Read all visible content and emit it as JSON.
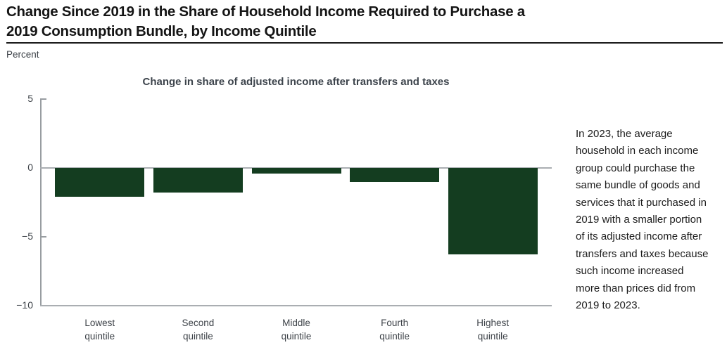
{
  "figure": {
    "title_line1": "Change Since 2019 in the Share of Household Income Required to Purchase a",
    "title_line2": "2019 Consumption Bundle, by Income Quintile",
    "unit_label": "Percent"
  },
  "chart_data": {
    "type": "bar",
    "title": "Change in share of adjusted income after transfers and taxes",
    "categories": [
      "Lowest quintile",
      "Second quintile",
      "Middle quintile",
      "Fourth quintile",
      "Highest quintile"
    ],
    "values": [
      -2.1,
      -1.8,
      -0.4,
      -1.0,
      -6.3
    ],
    "ylabel": "Percent",
    "ylim": [
      -10,
      5
    ],
    "yticks": [
      {
        "label": "5",
        "value": 5,
        "line": "tick"
      },
      {
        "label": "0",
        "value": 0,
        "line": "full"
      },
      {
        "label": "−5",
        "value": -5,
        "line": "tick"
      },
      {
        "label": "−10",
        "value": -10,
        "line": "full"
      }
    ],
    "bar_color": "#143d20",
    "legend": "none",
    "grid": false
  },
  "annotation": {
    "text": "In 2023, the average\nhousehold in each income\ngroup could purchase the\nsame bundle of goods and\nservices that it purchased in\n2019 with a smaller portion\nof its adjusted income after\ntransfers and taxes because\nsuch income increased\nmore than prices did from\n2019 to 2023."
  },
  "colors": {
    "bar_green": "#143d20",
    "axis_gray": "#989da1",
    "grid_gray": "#aaaeb2",
    "title_black": "#151515",
    "subtitle_gray": "#3d444c",
    "tick_label_gray": "#3e4349",
    "annotation_black": "#1c1c1c",
    "rule_black": "#1a1a1a"
  }
}
